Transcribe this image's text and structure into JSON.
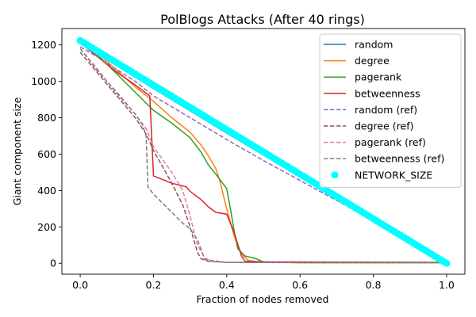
{
  "chart_data": {
    "type": "line",
    "title": "PolBlogs Attacks (After 40 rings)",
    "xlabel": "Fraction of nodes removed",
    "ylabel": "Giant component size",
    "xlim": [
      -0.05,
      1.05
    ],
    "ylim": [
      -60,
      1290
    ],
    "xticks": [
      0.0,
      0.2,
      0.4,
      0.6,
      0.8,
      1.0
    ],
    "xtick_labels": [
      "0.0",
      "0.2",
      "0.4",
      "0.6",
      "0.8",
      "1.0"
    ],
    "yticks": [
      0,
      200,
      400,
      600,
      800,
      1000,
      1200
    ],
    "ytick_labels": [
      "0",
      "200",
      "400",
      "600",
      "800",
      "1000",
      "1200"
    ],
    "grid": false,
    "legend_position": "top-right",
    "series": [
      {
        "name": "random",
        "color": "#1f77b4",
        "dash": "solid",
        "x": [
          0.0,
          0.05,
          0.1,
          0.2,
          0.3,
          0.4,
          0.5,
          0.6,
          0.7,
          0.8,
          0.9,
          0.95,
          1.0
        ],
        "y": [
          1210,
          1150,
          1085,
          960,
          838,
          715,
          595,
          475,
          355,
          238,
          118,
          58,
          0
        ]
      },
      {
        "name": "degree",
        "color": "#ff7f0e",
        "dash": "solid",
        "x": [
          0.0,
          0.02,
          0.05,
          0.1,
          0.15,
          0.2,
          0.25,
          0.3,
          0.33,
          0.35,
          0.37,
          0.38,
          0.4,
          0.42,
          0.44,
          0.46,
          0.5,
          0.6,
          1.0
        ],
        "y": [
          1220,
          1180,
          1150,
          1060,
          970,
          890,
          800,
          720,
          650,
          590,
          520,
          460,
          300,
          150,
          50,
          15,
          5,
          3,
          3
        ]
      },
      {
        "name": "pagerank",
        "color": "#2ca02c",
        "dash": "solid",
        "x": [
          0.0,
          0.05,
          0.1,
          0.15,
          0.2,
          0.25,
          0.3,
          0.33,
          0.35,
          0.37,
          0.4,
          0.41,
          0.42,
          0.43,
          0.45,
          0.48,
          0.5,
          0.6,
          1.0
        ],
        "y": [
          1220,
          1140,
          1040,
          940,
          840,
          770,
          690,
          610,
          540,
          490,
          410,
          300,
          180,
          80,
          40,
          25,
          8,
          3,
          3
        ]
      },
      {
        "name": "betweenness",
        "color": "#d62728",
        "dash": "solid",
        "x": [
          0.0,
          0.02,
          0.05,
          0.1,
          0.15,
          0.19,
          0.2,
          0.25,
          0.29,
          0.3,
          0.33,
          0.35,
          0.37,
          0.4,
          0.42,
          0.44,
          0.45,
          0.5,
          1.0
        ],
        "y": [
          1210,
          1180,
          1130,
          1050,
          980,
          920,
          480,
          440,
          420,
          395,
          350,
          310,
          280,
          270,
          170,
          40,
          12,
          8,
          5
        ]
      },
      {
        "name": "random (ref)",
        "color": "#9467bd",
        "dash": "dashed",
        "x": [
          0.0,
          0.05,
          0.1,
          0.15,
          0.2,
          0.3,
          0.4,
          0.5,
          0.6,
          0.7,
          0.8,
          0.9,
          1.0
        ],
        "y": [
          1190,
          1130,
          1065,
          1000,
          920,
          800,
          680,
          565,
          455,
          345,
          235,
          120,
          0
        ]
      },
      {
        "name": "degree (ref)",
        "color": "#8c564b",
        "dash": "dashed",
        "x": [
          0.0,
          0.05,
          0.1,
          0.15,
          0.18,
          0.2,
          0.25,
          0.28,
          0.3,
          0.32,
          0.33,
          0.35,
          0.4,
          1.0
        ],
        "y": [
          1160,
          1040,
          920,
          800,
          710,
          620,
          440,
          320,
          200,
          60,
          25,
          10,
          5,
          5
        ]
      },
      {
        "name": "pagerank (ref)",
        "color": "#e377c2",
        "dash": "dashed",
        "x": [
          0.0,
          0.05,
          0.1,
          0.15,
          0.18,
          0.2,
          0.25,
          0.28,
          0.3,
          0.32,
          0.34,
          0.36,
          0.4,
          1.0
        ],
        "y": [
          1180,
          1060,
          930,
          820,
          740,
          640,
          500,
          400,
          260,
          100,
          30,
          10,
          5,
          5
        ]
      },
      {
        "name": "betweenness (ref)",
        "color": "#7f7f7f",
        "dash": "dashed",
        "x": [
          0.0,
          0.05,
          0.1,
          0.15,
          0.17,
          0.18,
          0.185,
          0.2,
          0.25,
          0.28,
          0.3,
          0.32,
          0.34,
          0.4,
          1.0
        ],
        "y": [
          1180,
          1050,
          940,
          820,
          760,
          700,
          420,
          380,
          280,
          220,
          190,
          130,
          20,
          5,
          5
        ]
      }
    ],
    "scatter": {
      "name": "NETWORK_SIZE",
      "color": "#00ffff",
      "x_start": 0.0,
      "x_end": 1.0,
      "y_start": 1224,
      "y_end": 0,
      "count": 121
    }
  }
}
